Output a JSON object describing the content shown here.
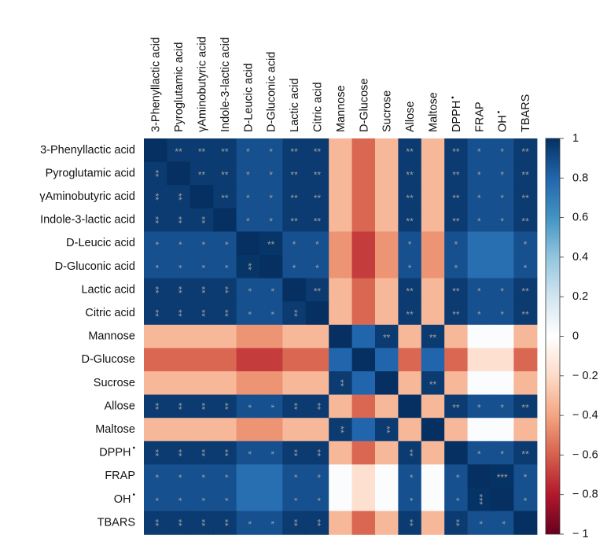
{
  "chart_data": {
    "type": "heatmap",
    "title": "",
    "labels": [
      {
        "text": "3-Phenyllactic acid"
      },
      {
        "text": "Pyroglutamic acid"
      },
      {
        "text": "γAminobutyric acid"
      },
      {
        "text": "Indole-3-lactic acid"
      },
      {
        "text": "D-Leucic acid"
      },
      {
        "text": "D-Gluconic acid"
      },
      {
        "text": "Lactic acid"
      },
      {
        "text": "Citric acid"
      },
      {
        "text": "Mannose"
      },
      {
        "text": "D-Glucose"
      },
      {
        "text": "Sucrose"
      },
      {
        "text": "Allose"
      },
      {
        "text": "Maltose"
      },
      {
        "text": "DPPH",
        "sup": "•"
      },
      {
        "text": "FRAP"
      },
      {
        "text": "OH",
        "sup": "•"
      },
      {
        "text": "TBARS"
      }
    ],
    "values": [
      [
        1,
        0.96,
        0.96,
        0.96,
        0.88,
        0.88,
        0.96,
        0.96,
        -0.33,
        -0.58,
        -0.33,
        0.96,
        -0.33,
        0.96,
        0.88,
        0.88,
        0.96
      ],
      [
        0.96,
        1,
        0.96,
        0.96,
        0.88,
        0.88,
        0.96,
        0.96,
        -0.33,
        -0.58,
        -0.33,
        0.96,
        -0.33,
        0.96,
        0.88,
        0.88,
        0.96
      ],
      [
        0.96,
        0.96,
        1,
        0.96,
        0.88,
        0.88,
        0.96,
        0.96,
        -0.33,
        -0.58,
        -0.33,
        0.96,
        -0.33,
        0.96,
        0.88,
        0.88,
        0.96
      ],
      [
        0.96,
        0.96,
        0.96,
        1,
        0.88,
        0.88,
        0.96,
        0.96,
        -0.33,
        -0.58,
        -0.33,
        0.96,
        -0.33,
        0.96,
        0.88,
        0.88,
        0.96
      ],
      [
        0.88,
        0.88,
        0.88,
        0.88,
        1,
        0.98,
        0.88,
        0.88,
        -0.45,
        -0.7,
        -0.45,
        0.88,
        -0.45,
        0.88,
        0.76,
        0.76,
        0.88
      ],
      [
        0.88,
        0.88,
        0.88,
        0.88,
        0.98,
        1,
        0.88,
        0.88,
        -0.45,
        -0.7,
        -0.45,
        0.88,
        -0.45,
        0.88,
        0.76,
        0.76,
        0.88
      ],
      [
        0.96,
        0.96,
        0.96,
        0.96,
        0.88,
        0.88,
        1,
        0.96,
        -0.33,
        -0.58,
        -0.33,
        0.96,
        -0.33,
        0.96,
        0.88,
        0.88,
        0.96
      ],
      [
        0.96,
        0.96,
        0.96,
        0.96,
        0.88,
        0.88,
        0.96,
        1,
        -0.33,
        -0.58,
        -0.33,
        0.96,
        -0.33,
        0.96,
        0.88,
        0.88,
        0.96
      ],
      [
        -0.33,
        -0.33,
        -0.33,
        -0.33,
        -0.45,
        -0.45,
        -0.33,
        -0.33,
        1,
        0.8,
        0.96,
        -0.33,
        0.96,
        -0.33,
        0.02,
        0.02,
        -0.33
      ],
      [
        -0.58,
        -0.58,
        -0.58,
        -0.58,
        -0.7,
        -0.7,
        -0.58,
        -0.58,
        0.8,
        1,
        0.8,
        -0.58,
        0.8,
        -0.58,
        -0.17,
        -0.17,
        -0.58
      ],
      [
        -0.33,
        -0.33,
        -0.33,
        -0.33,
        -0.45,
        -0.45,
        -0.33,
        -0.33,
        0.96,
        0.8,
        1,
        -0.33,
        0.96,
        -0.33,
        0.02,
        0.02,
        -0.33
      ],
      [
        0.96,
        0.96,
        0.96,
        0.96,
        0.88,
        0.88,
        0.96,
        0.96,
        -0.33,
        -0.58,
        -0.33,
        1,
        -0.33,
        0.96,
        0.88,
        0.88,
        0.96
      ],
      [
        -0.33,
        -0.33,
        -0.33,
        -0.33,
        -0.45,
        -0.45,
        -0.33,
        -0.33,
        0.96,
        0.8,
        0.96,
        -0.33,
        1,
        -0.33,
        0.02,
        0.02,
        -0.33
      ],
      [
        0.96,
        0.96,
        0.96,
        0.96,
        0.88,
        0.88,
        0.96,
        0.96,
        -0.33,
        -0.58,
        -0.33,
        0.96,
        -0.33,
        1,
        0.88,
        0.88,
        0.96
      ],
      [
        0.88,
        0.88,
        0.88,
        0.88,
        0.76,
        0.76,
        0.88,
        0.88,
        0.02,
        -0.17,
        0.02,
        0.88,
        0.02,
        0.88,
        1,
        0.99,
        0.88
      ],
      [
        0.88,
        0.88,
        0.88,
        0.88,
        0.76,
        0.76,
        0.88,
        0.88,
        0.02,
        -0.17,
        0.02,
        0.88,
        0.02,
        0.88,
        0.99,
        1,
        0.88
      ],
      [
        0.96,
        0.96,
        0.96,
        0.96,
        0.88,
        0.88,
        0.96,
        0.96,
        -0.33,
        -0.58,
        -0.33,
        0.96,
        -0.33,
        0.96,
        0.88,
        0.88,
        1
      ]
    ],
    "significance": [
      [
        "",
        "**",
        "**",
        "**",
        "*",
        "*",
        "**",
        "**",
        "",
        "",
        "",
        "**",
        "",
        "**",
        "*",
        "*",
        "**"
      ],
      [
        "**",
        "",
        "**",
        "**",
        "*",
        "*",
        "**",
        "**",
        "",
        "",
        "",
        "**",
        "",
        "**",
        "*",
        "*",
        "**"
      ],
      [
        "**",
        "**",
        "",
        "**",
        "*",
        "*",
        "**",
        "**",
        "",
        "",
        "",
        "**",
        "",
        "**",
        "*",
        "*",
        "**"
      ],
      [
        "**",
        "**",
        "**",
        "",
        "*",
        "*",
        "**",
        "**",
        "",
        "",
        "",
        "**",
        "",
        "**",
        "*",
        "*",
        "**"
      ],
      [
        "*",
        "*",
        "*",
        "*",
        "",
        "**",
        "*",
        "*",
        "",
        "",
        "",
        "*",
        "",
        "*",
        "",
        "",
        "*"
      ],
      [
        "*",
        "*",
        "*",
        "*",
        "**",
        "",
        "*",
        "*",
        "",
        "",
        "",
        "*",
        "",
        "*",
        "",
        "",
        "*"
      ],
      [
        "**",
        "**",
        "**",
        "**",
        "*",
        "*",
        "",
        "**",
        "",
        "",
        "",
        "**",
        "",
        "**",
        "*",
        "*",
        "**"
      ],
      [
        "**",
        "**",
        "**",
        "**",
        "*",
        "*",
        "**",
        "",
        "",
        "",
        "",
        "**",
        "",
        "**",
        "*",
        "*",
        "**"
      ],
      [
        "",
        "",
        "",
        "",
        "",
        "",
        "",
        "",
        "",
        "",
        "**",
        "",
        "**",
        "",
        "",
        "",
        ""
      ],
      [
        "",
        "",
        "",
        "",
        "",
        "",
        "",
        "",
        "",
        "",
        "",
        "",
        "",
        "",
        "",
        "",
        ""
      ],
      [
        "",
        "",
        "",
        "",
        "",
        "",
        "",
        "",
        "**",
        "",
        "",
        "",
        "**",
        "",
        "",
        "",
        ""
      ],
      [
        "**",
        "**",
        "**",
        "**",
        "*",
        "*",
        "**",
        "**",
        "",
        "",
        "",
        "",
        "",
        "**",
        "*",
        "*",
        "**"
      ],
      [
        "",
        "",
        "",
        "",
        "",
        "",
        "",
        "",
        "**",
        "",
        "**",
        "",
        "",
        "",
        "",
        "",
        ""
      ],
      [
        "**",
        "**",
        "**",
        "**",
        "*",
        "*",
        "**",
        "**",
        "",
        "",
        "",
        "**",
        "",
        "",
        "*",
        "*",
        "**"
      ],
      [
        "*",
        "*",
        "*",
        "*",
        "",
        "",
        "*",
        "*",
        "",
        "",
        "",
        "*",
        "",
        "*",
        "",
        "***",
        "*"
      ],
      [
        "*",
        "*",
        "*",
        "*",
        "",
        "",
        "*",
        "*",
        "",
        "",
        "",
        "*",
        "",
        "*",
        "***",
        "",
        "*"
      ],
      [
        "**",
        "**",
        "**",
        "**",
        "*",
        "*",
        "**",
        "**",
        "",
        "",
        "",
        "**",
        "",
        "**",
        "*",
        "*",
        ""
      ]
    ],
    "colorbar": {
      "range": [
        -1,
        1
      ],
      "ticks": [
        {
          "value": 1,
          "label": "1"
        },
        {
          "value": 0.8,
          "label": "0.8"
        },
        {
          "value": 0.6,
          "label": "0.6"
        },
        {
          "value": 0.4,
          "label": "0.4"
        },
        {
          "value": 0.2,
          "label": "0.2"
        },
        {
          "value": 0,
          "label": "0"
        },
        {
          "value": -0.2,
          "label": "− 0.2"
        },
        {
          "value": -0.4,
          "label": "− 0.4"
        },
        {
          "value": -0.6,
          "label": "− 0.6"
        },
        {
          "value": -0.8,
          "label": "− 0.8"
        },
        {
          "value": -1,
          "label": "− 1"
        }
      ],
      "colors": [
        "#67001f",
        "#b2182b",
        "#d6604d",
        "#f4a582",
        "#fddbc7",
        "#ffffff",
        "#d1e5f0",
        "#92c5de",
        "#4393c3",
        "#2166ac",
        "#053061"
      ]
    }
  }
}
